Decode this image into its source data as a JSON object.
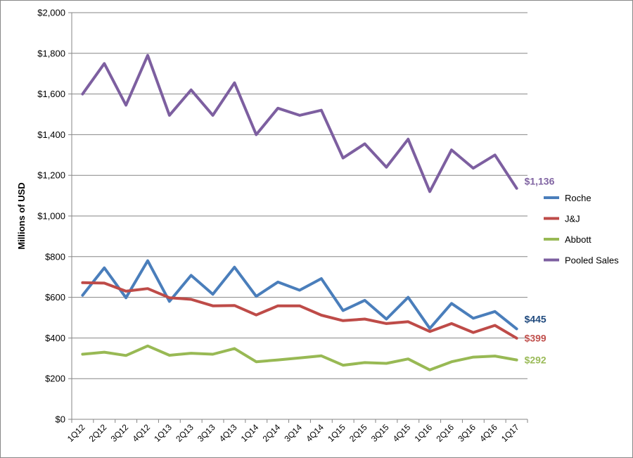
{
  "chart_data": {
    "type": "line",
    "ylabel": "Millions of USD",
    "xlabel": "",
    "ylim": [
      0,
      2000
    ],
    "y_ticks": [
      "$0",
      "$200",
      "$400",
      "$600",
      "$800",
      "$1,000",
      "$1,200",
      "$1,400",
      "$1,600",
      "$1,800",
      "$2,000"
    ],
    "y_tick_values": [
      0,
      200,
      400,
      600,
      800,
      1000,
      1200,
      1400,
      1600,
      1800,
      2000
    ],
    "grid": true,
    "legend_position": "right",
    "categories": [
      "1Q12",
      "2Q12",
      "3Q12",
      "4Q12",
      "1Q13",
      "2Q13",
      "3Q13",
      "4Q13",
      "1Q14",
      "2Q14",
      "3Q14",
      "4Q14",
      "1Q15",
      "2Q15",
      "3Q15",
      "4Q15",
      "1Q16",
      "2Q16",
      "3Q16",
      "4Q16",
      "1Q17"
    ],
    "series": [
      {
        "name": "Roche",
        "color": "#4a7ebb",
        "end_label": "$445",
        "end_label_color": "#1f497d",
        "values": [
          610,
          745,
          598,
          780,
          580,
          708,
          615,
          748,
          605,
          675,
          635,
          692,
          535,
          585,
          493,
          600,
          447,
          570,
          497,
          530,
          445
        ]
      },
      {
        "name": "J&J",
        "color": "#be4b48",
        "end_label": "$399",
        "end_label_color": "#c0504d",
        "values": [
          672,
          670,
          630,
          643,
          598,
          590,
          558,
          560,
          513,
          558,
          558,
          512,
          485,
          493,
          471,
          480,
          432,
          471,
          427,
          462,
          399
        ]
      },
      {
        "name": "Abbott",
        "color": "#98b954",
        "end_label": "$292",
        "end_label_color": "#9bbb59",
        "values": [
          320,
          330,
          314,
          361,
          315,
          325,
          320,
          348,
          283,
          292,
          302,
          312,
          266,
          279,
          275,
          297,
          243,
          283,
          306,
          311,
          292
        ]
      },
      {
        "name": "Pooled Sales",
        "color": "#7d5fa0",
        "end_label": "$1,136",
        "end_label_color": "#8064a2",
        "values": [
          1600,
          1750,
          1545,
          1790,
          1495,
          1620,
          1495,
          1655,
          1400,
          1530,
          1495,
          1520,
          1285,
          1355,
          1240,
          1378,
          1120,
          1325,
          1235,
          1300,
          1136
        ]
      }
    ]
  }
}
